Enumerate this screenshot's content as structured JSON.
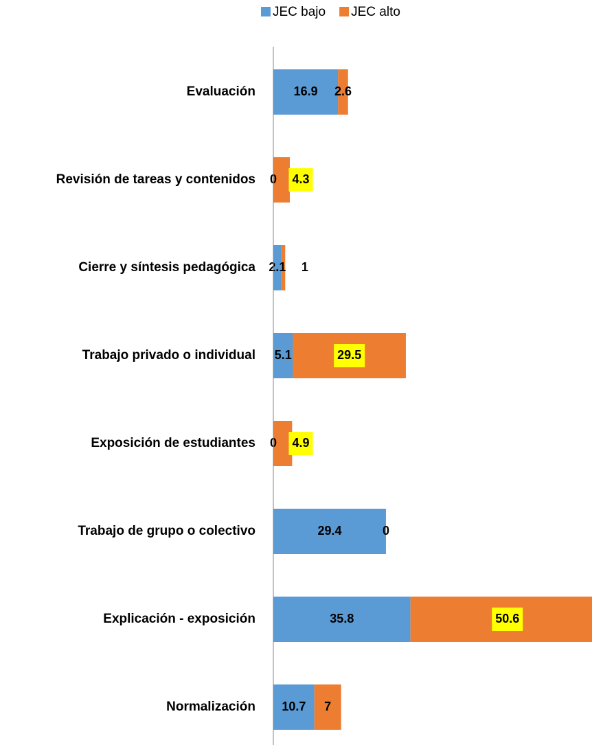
{
  "chart_data": {
    "type": "stacked-barh",
    "categories": [
      "Evaluación",
      "Revisión de tareas y contenidos",
      "Cierre y síntesis pedagógica",
      "Trabajo privado o individual",
      "Exposición de estudiantes",
      "Trabajo de grupo o colectivo",
      "Explicación - exposición",
      "Normalización"
    ],
    "series": [
      {
        "name": "JEC bajo",
        "color": "#5b9bd5",
        "values": [
          16.9,
          0,
          2.1,
          5.1,
          0,
          29.4,
          35.8,
          10.7
        ]
      },
      {
        "name": "JEC alto",
        "color": "#ed7d31",
        "values": [
          2.6,
          4.3,
          1,
          29.5,
          4.9,
          0,
          50.6,
          7
        ]
      }
    ],
    "xlim": [
      0,
      83.2
    ],
    "legend": "top",
    "label_highlight": {
      "color": "#ffff00",
      "series": 1,
      "indices": [
        1,
        3,
        4,
        6
      ]
    }
  }
}
